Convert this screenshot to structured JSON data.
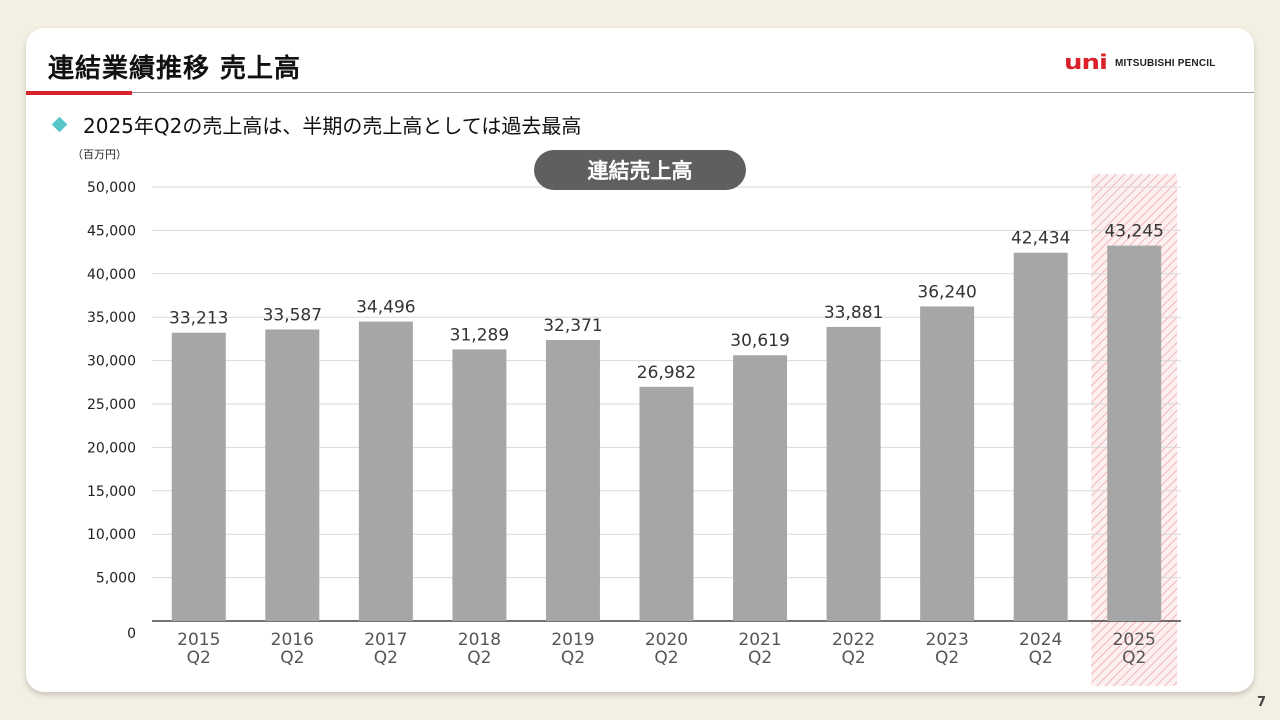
{
  "header": {
    "title": "連結業績推移 売上高",
    "logo_mark": "uni",
    "logo_text": "MITSUBISHI PENCIL",
    "accent_color": "#d9222a",
    "bullet_icon": "diamond-icon",
    "bullet_color": "#55c6c6"
  },
  "bullet": {
    "text": "2025年Q2の売上高は、半期の売上高としては過去最高"
  },
  "page_number": "7",
  "chart_data": {
    "type": "bar",
    "title": "連結売上高",
    "unit_label": "（百万円）",
    "categories": [
      "2015\nQ2",
      "2016\nQ2",
      "2017\nQ2",
      "2018\nQ2",
      "2019\nQ2",
      "2020\nQ2",
      "2021\nQ2",
      "2022\nQ2",
      "2023\nQ2",
      "2024\nQ2",
      "2025\nQ2"
    ],
    "values": [
      33213,
      33587,
      34496,
      31289,
      32371,
      26982,
      30619,
      33881,
      36240,
      42434,
      43245
    ],
    "value_labels": [
      "33,213",
      "33,587",
      "34,496",
      "31,289",
      "32,371",
      "26,982",
      "30,619",
      "33,881",
      "36,240",
      "42,434",
      "43,245"
    ],
    "ylim": [
      0,
      50000
    ],
    "yticks": [
      0,
      5000,
      10000,
      15000,
      20000,
      25000,
      30000,
      35000,
      40000,
      45000,
      50000
    ],
    "ytick_labels": [
      "0",
      "5,000",
      "10,000",
      "15,000",
      "20,000",
      "25,000",
      "30,000",
      "35,000",
      "40,000",
      "45,000",
      "50,000"
    ],
    "grid": true,
    "bar_color": "#a6a6a6",
    "highlight_index": 10,
    "highlight_color": "#e8a5a5",
    "title_badge_color": "#5f5f5f"
  }
}
